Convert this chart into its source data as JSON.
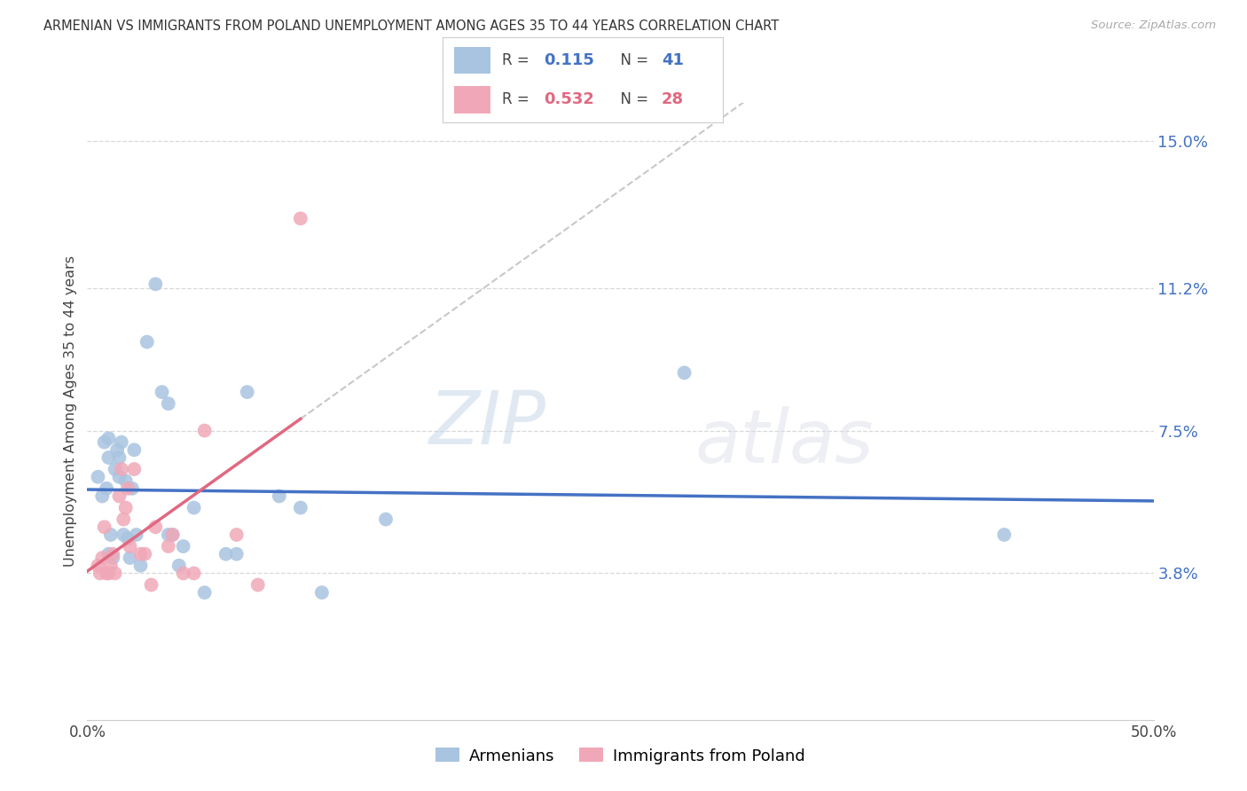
{
  "title": "ARMENIAN VS IMMIGRANTS FROM POLAND UNEMPLOYMENT AMONG AGES 35 TO 44 YEARS CORRELATION CHART",
  "source": "Source: ZipAtlas.com",
  "ylabel": "Unemployment Among Ages 35 to 44 years",
  "xlim": [
    0.0,
    0.5
  ],
  "ylim": [
    0.0,
    0.16
  ],
  "yticks": [
    0.038,
    0.075,
    0.112,
    0.15
  ],
  "ytick_labels": [
    "3.8%",
    "7.5%",
    "11.2%",
    "15.0%"
  ],
  "xticks": [
    0.0,
    0.1,
    0.2,
    0.3,
    0.4,
    0.5
  ],
  "xtick_labels": [
    "0.0%",
    "",
    "",
    "",
    "",
    "50.0%"
  ],
  "legend_armenian_R": "0.115",
  "legend_armenian_N": "41",
  "legend_poland_R": "0.532",
  "legend_poland_N": "28",
  "armenian_color": "#a8c4e0",
  "poland_color": "#f0a8b8",
  "armenian_line_color": "#4472c4",
  "poland_line_color": "#e06880",
  "poland_dashed_color": "#c8c8c8",
  "watermark_zip": "ZIP",
  "watermark_atlas": "atlas",
  "armenian_points": [
    [
      0.005,
      0.063
    ],
    [
      0.007,
      0.058
    ],
    [
      0.008,
      0.072
    ],
    [
      0.009,
      0.06
    ],
    [
      0.01,
      0.043
    ],
    [
      0.01,
      0.068
    ],
    [
      0.01,
      0.073
    ],
    [
      0.011,
      0.048
    ],
    [
      0.012,
      0.042
    ],
    [
      0.013,
      0.065
    ],
    [
      0.014,
      0.07
    ],
    [
      0.015,
      0.063
    ],
    [
      0.015,
      0.068
    ],
    [
      0.016,
      0.072
    ],
    [
      0.017,
      0.048
    ],
    [
      0.018,
      0.062
    ],
    [
      0.019,
      0.047
    ],
    [
      0.02,
      0.042
    ],
    [
      0.021,
      0.06
    ],
    [
      0.022,
      0.07
    ],
    [
      0.023,
      0.048
    ],
    [
      0.025,
      0.04
    ],
    [
      0.028,
      0.098
    ],
    [
      0.032,
      0.113
    ],
    [
      0.035,
      0.085
    ],
    [
      0.038,
      0.082
    ],
    [
      0.038,
      0.048
    ],
    [
      0.04,
      0.048
    ],
    [
      0.043,
      0.04
    ],
    [
      0.045,
      0.045
    ],
    [
      0.05,
      0.055
    ],
    [
      0.055,
      0.033
    ],
    [
      0.065,
      0.043
    ],
    [
      0.07,
      0.043
    ],
    [
      0.075,
      0.085
    ],
    [
      0.09,
      0.058
    ],
    [
      0.1,
      0.055
    ],
    [
      0.11,
      0.033
    ],
    [
      0.14,
      0.052
    ],
    [
      0.28,
      0.09
    ],
    [
      0.43,
      0.048
    ]
  ],
  "poland_points": [
    [
      0.005,
      0.04
    ],
    [
      0.006,
      0.038
    ],
    [
      0.007,
      0.042
    ],
    [
      0.008,
      0.05
    ],
    [
      0.009,
      0.038
    ],
    [
      0.01,
      0.038
    ],
    [
      0.011,
      0.04
    ],
    [
      0.012,
      0.043
    ],
    [
      0.013,
      0.038
    ],
    [
      0.015,
      0.058
    ],
    [
      0.016,
      0.065
    ],
    [
      0.017,
      0.052
    ],
    [
      0.018,
      0.055
    ],
    [
      0.019,
      0.06
    ],
    [
      0.02,
      0.045
    ],
    [
      0.022,
      0.065
    ],
    [
      0.025,
      0.043
    ],
    [
      0.027,
      0.043
    ],
    [
      0.03,
      0.035
    ],
    [
      0.032,
      0.05
    ],
    [
      0.038,
      0.045
    ],
    [
      0.04,
      0.048
    ],
    [
      0.045,
      0.038
    ],
    [
      0.05,
      0.038
    ],
    [
      0.055,
      0.075
    ],
    [
      0.07,
      0.048
    ],
    [
      0.08,
      0.035
    ],
    [
      0.1,
      0.13
    ]
  ],
  "bg_color": "#ffffff",
  "grid_color": "#d8d8d8"
}
